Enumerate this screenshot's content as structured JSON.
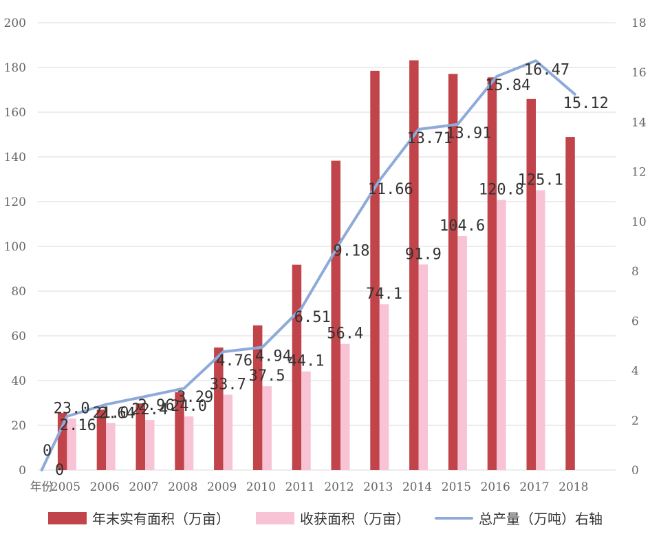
{
  "chart_data": {
    "type": "bar",
    "x_label": "年份",
    "categories": [
      "2005",
      "2006",
      "2007",
      "2008",
      "2009",
      "2010",
      "2011",
      "2012",
      "2013",
      "2014",
      "2015",
      "2016",
      "2017",
      "2018"
    ],
    "left_axis": {
      "min": 0,
      "max": 200,
      "ticks": [
        "0",
        "20",
        "40",
        "60",
        "80",
        "100",
        "120",
        "140",
        "160",
        "180",
        "200"
      ]
    },
    "right_axis": {
      "min": 0,
      "max": 18,
      "ticks": [
        "0",
        "2",
        "4",
        "6",
        "8",
        "10",
        "12",
        "14",
        "16",
        "18"
      ]
    },
    "grid": true,
    "legend_position": "bottom",
    "series": [
      {
        "name": "年末实有面积（万亩）",
        "type": "bar",
        "axis": "left",
        "color": "#c0444a",
        "values": [
          25.5,
          27.0,
          29.8,
          34.8,
          54.8,
          64.7,
          91.8,
          138.3,
          178.5,
          183.2,
          177.1,
          175.6,
          165.9,
          148.9
        ]
      },
      {
        "name": "收获面积（万亩）",
        "type": "bar",
        "axis": "left",
        "color": "#f9c3d6",
        "values": [
          23.0,
          21.0,
          22.4,
          24.0,
          33.7,
          37.5,
          44.1,
          56.4,
          74.1,
          91.9,
          104.6,
          120.8,
          125.1,
          null
        ],
        "labels": [
          "23.0",
          "21.0",
          "22.4",
          "24.0",
          "33.7",
          "37.5",
          "44.1",
          "56.4",
          "74.1",
          "91.9",
          "104.6",
          "120.8",
          "125.1",
          ""
        ]
      },
      {
        "name": "总产量（万吨）右轴",
        "type": "line",
        "axis": "right",
        "color": "#8eaad8",
        "start": {
          "x_label": "年份",
          "value": 0,
          "labels": [
            "0",
            "0"
          ]
        },
        "values": [
          2.16,
          2.64,
          2.96,
          3.29,
          4.76,
          4.94,
          6.51,
          9.18,
          11.66,
          13.71,
          13.91,
          15.84,
          16.47,
          15.12
        ],
        "labels": [
          "2.16",
          "2.64",
          "2.96",
          "3.29",
          "4.76",
          "4.94",
          "6.51",
          "9.18",
          "11.66",
          "13.71",
          "13.91",
          "15.84",
          "16.47",
          "15.12"
        ]
      }
    ]
  }
}
